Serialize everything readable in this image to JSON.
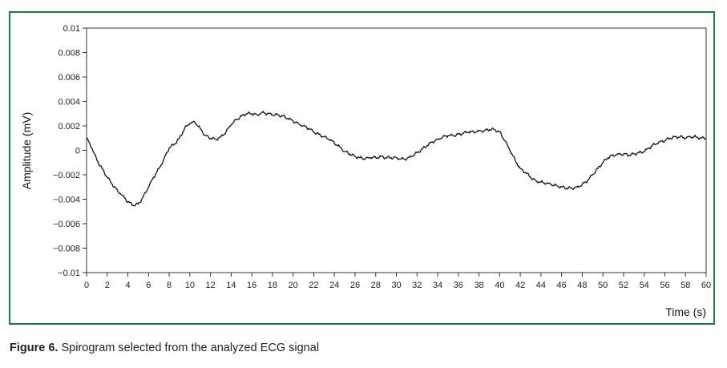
{
  "caption": {
    "label": "Figure 6.",
    "text": " Spirogram selected from the analyzed ECG signal"
  },
  "colors": {
    "frame": "#1e7a45",
    "line": "#111111",
    "axis": "#333333"
  },
  "chart_data": {
    "type": "line",
    "xlabel": "Time (s)",
    "ylabel": "Amplitude (mV)",
    "xlim": [
      0,
      60
    ],
    "ylim": [
      -0.01,
      0.01
    ],
    "x_ticks": [
      0,
      2,
      4,
      6,
      8,
      10,
      12,
      14,
      16,
      18,
      20,
      22,
      24,
      26,
      28,
      30,
      32,
      34,
      36,
      38,
      40,
      42,
      44,
      46,
      48,
      50,
      52,
      54,
      56,
      58,
      60
    ],
    "y_ticks": [
      0.01,
      0.008,
      0.006,
      0.004,
      0.002,
      0,
      -0.002,
      -0.004,
      -0.006,
      -0.008,
      -0.01
    ],
    "y_tick_labels": [
      "0.01",
      "0.008",
      "0.006",
      "0.004",
      "0.002",
      "0",
      "−0.002",
      "−0.004",
      "−0.006",
      "−0.008",
      "−0.01"
    ],
    "grid": false,
    "series": [
      {
        "x": [
          0,
          0.5,
          1,
          1.5,
          2,
          2.5,
          3,
          3.5,
          4,
          4.5,
          5,
          5.5,
          6,
          6.5,
          7,
          7.5,
          8,
          8.5,
          9,
          9.5,
          10,
          10.5,
          11,
          11.5,
          12,
          12.5,
          13,
          13.5,
          14,
          14.5,
          15,
          15.5,
          16,
          16.5,
          17,
          17.5,
          18,
          18.5,
          19,
          19.5,
          20,
          20.5,
          21,
          21.5,
          22,
          22.5,
          23,
          23.5,
          24,
          24.5,
          25,
          25.5,
          26,
          26.5,
          27,
          27.5,
          28,
          28.5,
          29,
          29.5,
          30,
          30.5,
          31,
          31.5,
          32,
          32.5,
          33,
          33.5,
          34,
          34.5,
          35,
          35.5,
          36,
          36.5,
          37,
          37.5,
          38,
          38.5,
          39,
          39.5,
          40,
          40.5,
          41,
          41.5,
          42,
          42.5,
          43,
          43.5,
          44,
          44.5,
          45,
          45.5,
          46,
          46.5,
          47,
          47.5,
          48,
          48.5,
          49,
          49.5,
          50,
          50.5,
          51,
          51.5,
          52,
          52.5,
          53,
          53.5,
          54,
          54.5,
          55,
          55.5,
          56,
          56.5,
          57,
          57.5,
          58,
          58.5,
          59,
          59.5,
          60
        ],
        "y": [
          0.001,
          0.0002,
          -0.0008,
          -0.0015,
          -0.0022,
          -0.0028,
          -0.0033,
          -0.0037,
          -0.0042,
          -0.0045,
          -0.0044,
          -0.0038,
          -0.003,
          -0.0022,
          -0.0015,
          -0.0007,
          0.0002,
          0.0005,
          0.001,
          0.0018,
          0.0022,
          0.0023,
          0.0018,
          0.0012,
          0.001,
          0.0009,
          0.0011,
          0.0015,
          0.0021,
          0.0025,
          0.0028,
          0.003,
          0.003,
          0.0029,
          0.0031,
          0.003,
          0.0029,
          0.0029,
          0.0028,
          0.0026,
          0.0024,
          0.0022,
          0.002,
          0.0018,
          0.0015,
          0.0013,
          0.0011,
          0.0009,
          0.0006,
          0.0003,
          -0.0001,
          -0.0003,
          -0.0005,
          -0.0006,
          -0.0007,
          -0.0006,
          -0.0006,
          -0.0005,
          -0.0006,
          -0.0006,
          -0.0006,
          -0.0007,
          -0.0007,
          -0.0005,
          -0.0002,
          0.0001,
          0.0004,
          0.0007,
          0.0009,
          0.0011,
          0.0012,
          0.0012,
          0.0013,
          0.0014,
          0.0015,
          0.0015,
          0.0016,
          0.0016,
          0.0017,
          0.0017,
          0.0015,
          0.0008,
          0.0,
          -0.0008,
          -0.0015,
          -0.0018,
          -0.0022,
          -0.0025,
          -0.0026,
          -0.0027,
          -0.0028,
          -0.0029,
          -0.003,
          -0.0031,
          -0.0031,
          -0.003,
          -0.0028,
          -0.0025,
          -0.002,
          -0.0015,
          -0.001,
          -0.0006,
          -0.0004,
          -0.0003,
          -0.0003,
          -0.0004,
          -0.0003,
          -0.0002,
          -0.0001,
          0.0002,
          0.0005,
          0.0007,
          0.0008,
          0.001,
          0.0011,
          0.0011,
          0.001,
          0.0011,
          0.0011,
          0.001,
          0.001
        ]
      }
    ]
  }
}
